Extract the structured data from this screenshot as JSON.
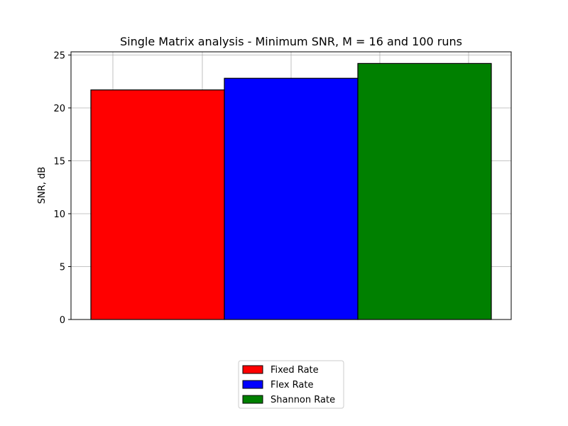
{
  "chart_data": {
    "type": "bar",
    "title": "Single Matrix analysis - Minimum SNR, M = 16 and 100 runs",
    "xlabel": "",
    "ylabel": "SNR, dB",
    "ylim": [
      0,
      25.3
    ],
    "yticks": [
      0,
      5,
      10,
      15,
      20,
      25
    ],
    "grid": true,
    "legend_position": "bottom-center",
    "series": [
      {
        "name": "Fixed Rate",
        "value": 21.7,
        "color": "#ff0000"
      },
      {
        "name": "Flex Rate",
        "value": 22.8,
        "color": "#0000ff"
      },
      {
        "name": "Shannon Rate",
        "value": 24.2,
        "color": "#008000"
      }
    ]
  }
}
